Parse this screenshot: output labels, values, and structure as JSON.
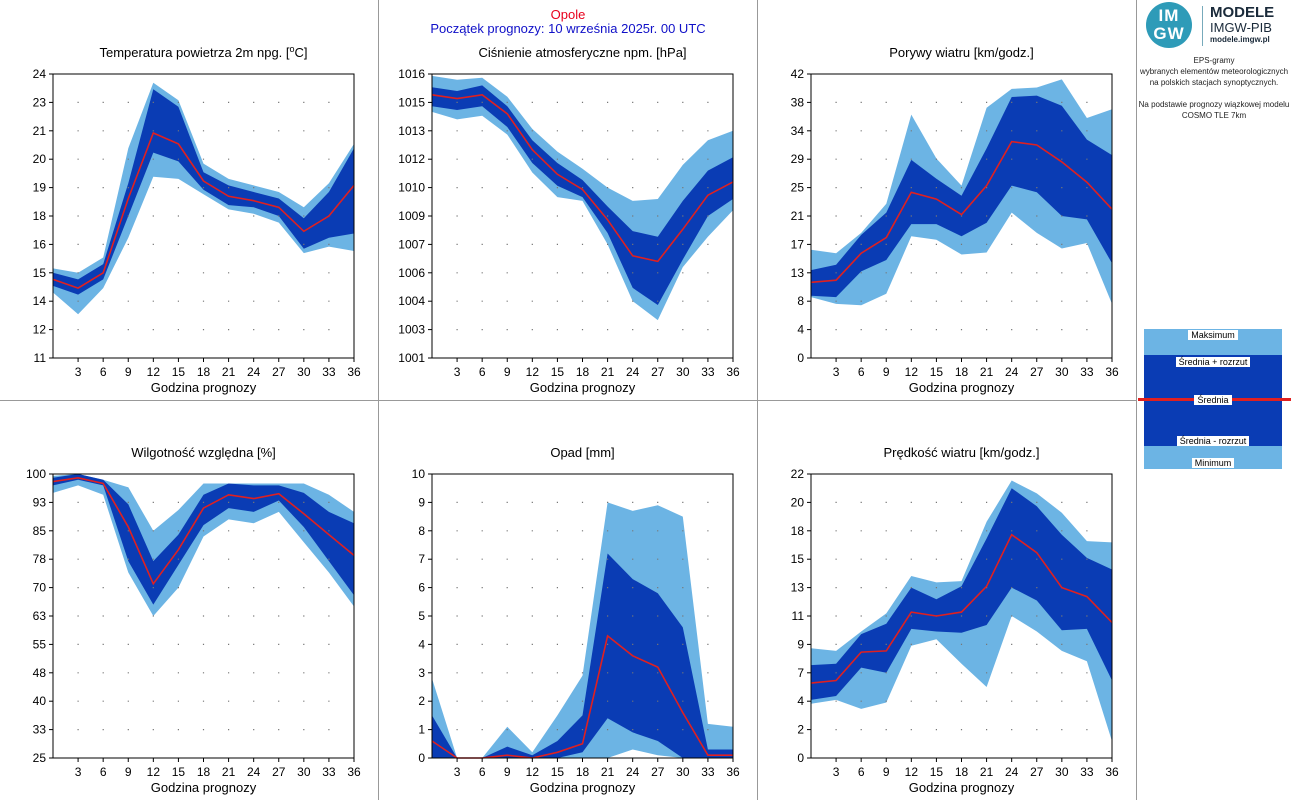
{
  "header": {
    "location": "Opole",
    "forecast_start": "Początek prognozy: 10 września 2025r. 00 UTC"
  },
  "logo": {
    "mark_top": "IM",
    "mark_bottom": "GW",
    "title": "MODELE",
    "subtitle": "IMGW-PIB",
    "url": "modele.imgw.pl"
  },
  "info": {
    "line1": "EPS-gramy",
    "line2": "wybranych elementów meteorologicznych",
    "line3": "na polskich stacjach  synoptycznych.",
    "line4": "Na podstawie prognozy wiązkowej modelu",
    "line5": "COSMO TLE 7km"
  },
  "legend": {
    "max": "Maksimum",
    "mean_plus": "Średnia + rozrzut",
    "mean": "Średnia",
    "mean_minus": "Średnia - rozrzut",
    "min": "Minimum"
  },
  "colors": {
    "light_band": "#6cb4e4",
    "dark_band": "#0a3cb4",
    "mean_line": "#e02020",
    "location": "#e8001c",
    "forecast_start": "#1010c8"
  },
  "chart_data": [
    {
      "type": "area",
      "title": "Temperatura powietrza 2m npg. [°C]",
      "title_base": "Temperatura powietrza 2m npg. [",
      "title_sup": "o",
      "title_end": "C]",
      "xlabel": "Godzina prognozy",
      "x": [
        0,
        3,
        6,
        9,
        12,
        15,
        18,
        21,
        24,
        27,
        30,
        33,
        36
      ],
      "xticks": [
        3,
        6,
        9,
        12,
        15,
        18,
        21,
        24,
        27,
        30,
        33,
        36
      ],
      "xlim": [
        0,
        36
      ],
      "ylim": [
        11,
        24
      ],
      "ytick_values": [
        11,
        12.3,
        13.6,
        14.9,
        16.2,
        17.5,
        18.8,
        20.1,
        21.4,
        22.7,
        24
      ],
      "ytick_labels": [
        "11",
        "12",
        "14",
        "15",
        "16",
        "18",
        "19",
        "20",
        "21",
        "23",
        "24"
      ],
      "series": {
        "min": [
          14.0,
          13.0,
          14.2,
          16.5,
          19.3,
          19.2,
          18.5,
          17.8,
          17.6,
          17.2,
          15.8,
          16.1,
          15.9
        ],
        "mean_minus": [
          14.3,
          13.9,
          14.6,
          17.5,
          20.4,
          20.0,
          18.7,
          18.0,
          17.9,
          17.5,
          16.0,
          16.5,
          16.7
        ],
        "mean": [
          14.6,
          14.2,
          14.9,
          18.3,
          21.3,
          20.8,
          19.1,
          18.4,
          18.2,
          17.9,
          16.8,
          17.5,
          18.9
        ],
        "mean_plus": [
          14.9,
          14.6,
          15.3,
          19.0,
          23.3,
          22.5,
          19.5,
          18.9,
          18.6,
          18.3,
          17.4,
          18.6,
          20.6
        ],
        "max": [
          15.1,
          14.9,
          15.6,
          20.6,
          23.6,
          22.8,
          19.9,
          19.2,
          18.9,
          18.6,
          17.9,
          19.0,
          20.8
        ]
      }
    },
    {
      "type": "area",
      "title": "Ciśnienie atmosferyczne npm. [hPa]",
      "xlabel": "Godzina prognozy",
      "x": [
        0,
        3,
        6,
        9,
        12,
        15,
        18,
        21,
        24,
        27,
        30,
        33,
        36
      ],
      "xticks": [
        3,
        6,
        9,
        12,
        15,
        18,
        21,
        24,
        27,
        30,
        33,
        36
      ],
      "xlim": [
        0,
        36
      ],
      "ylim": [
        1001,
        1016
      ],
      "ytick_values": [
        1001,
        1002.5,
        1004,
        1005.5,
        1007,
        1008.5,
        1010,
        1011.5,
        1013,
        1014.5,
        1016
      ],
      "ytick_labels": [
        "1001",
        "1003",
        "1004",
        "1006",
        "1007",
        "1009",
        "1010",
        "1012",
        "1013",
        "1015",
        "1016"
      ],
      "series": {
        "min": [
          1014.0,
          1013.6,
          1013.8,
          1012.8,
          1010.8,
          1009.5,
          1009.3,
          1007.0,
          1004.0,
          1003.0,
          1005.8,
          1007.4,
          1008.8
        ],
        "mean_minus": [
          1014.3,
          1014.1,
          1014.3,
          1013.2,
          1011.3,
          1010.1,
          1009.5,
          1007.6,
          1004.7,
          1003.8,
          1006.2,
          1008.5,
          1009.4
        ],
        "mean": [
          1014.9,
          1014.7,
          1014.9,
          1013.9,
          1012.0,
          1010.7,
          1009.9,
          1008.3,
          1006.4,
          1006.1,
          1007.8,
          1009.6,
          1010.3
        ],
        "mean_plus": [
          1015.3,
          1015.1,
          1015.4,
          1014.3,
          1012.5,
          1011.3,
          1010.4,
          1009.0,
          1007.7,
          1007.4,
          1009.3,
          1010.9,
          1011.6
        ],
        "max": [
          1015.9,
          1015.7,
          1015.8,
          1014.8,
          1013.1,
          1011.9,
          1011.0,
          1010.0,
          1009.3,
          1009.4,
          1011.2,
          1012.5,
          1013.0
        ]
      }
    },
    {
      "type": "area",
      "title": "Porywy wiatru [km/godz.]",
      "xlabel": "Godzina prognozy",
      "x": [
        0,
        3,
        6,
        9,
        12,
        15,
        18,
        21,
        24,
        27,
        30,
        33,
        36
      ],
      "xticks": [
        3,
        6,
        9,
        12,
        15,
        18,
        21,
        24,
        27,
        30,
        33,
        36
      ],
      "xlim": [
        0,
        36
      ],
      "ylim": [
        0,
        42
      ],
      "ytick_values": [
        0,
        4.2,
        8.4,
        12.6,
        16.8,
        21,
        25.2,
        29.4,
        33.6,
        37.8,
        42
      ],
      "ytick_labels": [
        "0",
        "4",
        "8",
        "13",
        "17",
        "21",
        "25",
        "29",
        "34",
        "38",
        "42"
      ],
      "series": {
        "min": [
          9.0,
          8.0,
          7.8,
          9.5,
          18.0,
          17.5,
          15.3,
          15.6,
          21.5,
          18.5,
          16.2,
          17.0,
          8.0
        ],
        "mean_minus": [
          9.2,
          9.0,
          12.8,
          14.5,
          19.8,
          19.8,
          18.0,
          20.0,
          25.5,
          24.5,
          21.0,
          20.5,
          14.0
        ],
        "mean": [
          11.2,
          11.5,
          15.5,
          17.8,
          24.5,
          23.5,
          21.2,
          25.5,
          32.0,
          31.5,
          29.0,
          26.0,
          22.0
        ],
        "mean_plus": [
          13.0,
          13.8,
          18.2,
          21.5,
          29.3,
          26.5,
          24.0,
          31.0,
          38.6,
          38.8,
          37.3,
          32.3,
          30.0
        ],
        "max": [
          16.0,
          15.5,
          18.5,
          22.8,
          36.0,
          29.5,
          25.5,
          37.0,
          39.8,
          40.0,
          41.2,
          35.5,
          36.8
        ]
      }
    },
    {
      "type": "area",
      "title": "Wilgotność względna [%]",
      "xlabel": "Godzina prognozy",
      "x": [
        0,
        3,
        6,
        9,
        12,
        15,
        18,
        21,
        24,
        27,
        30,
        33,
        36
      ],
      "xticks": [
        3,
        6,
        9,
        12,
        15,
        18,
        21,
        24,
        27,
        30,
        33,
        36
      ],
      "xlim": [
        0,
        36
      ],
      "ylim": [
        25,
        100
      ],
      "ytick_values": [
        25,
        32.5,
        40,
        47.5,
        55,
        62.5,
        70,
        77.5,
        85,
        92.5,
        100
      ],
      "ytick_labels": [
        "25",
        "33",
        "40",
        "48",
        "55",
        "63",
        "70",
        "78",
        "85",
        "93",
        "100"
      ],
      "series": {
        "min": [
          95.0,
          97.0,
          94.5,
          74.0,
          62.5,
          70.0,
          83.5,
          88.0,
          87.0,
          90.0,
          82.0,
          74.0,
          65.0
        ],
        "mean_minus": [
          97.0,
          98.5,
          97.0,
          77.0,
          65.5,
          76.0,
          86.5,
          91.0,
          90.0,
          93.0,
          86.0,
          77.0,
          68.0
        ],
        "mean": [
          98.0,
          99.0,
          97.5,
          86.0,
          71.0,
          80.0,
          91.0,
          94.5,
          93.5,
          94.8,
          89.5,
          84.0,
          78.5
        ],
        "mean_plus": [
          99.0,
          100.0,
          98.5,
          92.0,
          77.0,
          84.0,
          94.5,
          97.5,
          97.0,
          97.0,
          95.0,
          90.0,
          87.0
        ],
        "max": [
          99.5,
          100.0,
          98.5,
          96.5,
          85.0,
          90.5,
          97.5,
          97.5,
          97.5,
          97.5,
          97.5,
          94.5,
          90.0
        ]
      }
    },
    {
      "type": "area",
      "title": "Opad [mm]",
      "xlabel": "Godzina prognozy",
      "x": [
        0,
        3,
        6,
        9,
        12,
        15,
        18,
        21,
        24,
        27,
        30,
        33,
        36
      ],
      "xticks": [
        3,
        6,
        9,
        12,
        15,
        18,
        21,
        24,
        27,
        30,
        33,
        36
      ],
      "xlim": [
        0,
        36
      ],
      "ylim": [
        0,
        10
      ],
      "ytick_values": [
        0,
        1,
        2,
        3,
        4,
        5,
        6,
        7,
        8,
        9,
        10
      ],
      "ytick_labels": [
        "0",
        "1",
        "2",
        "3",
        "4",
        "5",
        "6",
        "7",
        "8",
        "9",
        "10"
      ],
      "series": {
        "min": [
          0,
          0,
          0,
          0,
          0,
          0,
          0,
          0,
          0.3,
          0.1,
          0,
          0,
          0
        ],
        "mean_minus": [
          0,
          0,
          0,
          0,
          0,
          0,
          0.2,
          1.4,
          0.9,
          0.6,
          0,
          0,
          0
        ],
        "mean": [
          0.6,
          0,
          0,
          0.1,
          0,
          0.2,
          0.5,
          4.3,
          3.6,
          3.2,
          1.6,
          0.1,
          0.1
        ],
        "mean_plus": [
          1.5,
          0,
          0,
          0.4,
          0.1,
          0.6,
          1.5,
          7.2,
          6.3,
          5.8,
          4.6,
          0.3,
          0.3
        ],
        "max": [
          2.8,
          0,
          0,
          1.1,
          0.2,
          1.5,
          2.9,
          9.0,
          8.7,
          8.9,
          8.5,
          1.2,
          1.1
        ]
      }
    },
    {
      "type": "area",
      "title": "Prędkość wiatru [km/godz.]",
      "xlabel": "Godzina prognozy",
      "x": [
        0,
        3,
        6,
        9,
        12,
        15,
        18,
        21,
        24,
        27,
        30,
        33,
        36
      ],
      "xticks": [
        3,
        6,
        9,
        12,
        15,
        18,
        21,
        24,
        27,
        30,
        33,
        36
      ],
      "xlim": [
        0,
        36
      ],
      "ylim": [
        0,
        22
      ],
      "ytick_values": [
        0,
        2.2,
        4.4,
        6.6,
        8.8,
        11,
        13.2,
        15.4,
        17.6,
        19.8,
        22
      ],
      "ytick_labels": [
        "0",
        "2",
        "4",
        "7",
        "9",
        "11",
        "13",
        "15",
        "18",
        "20",
        "22"
      ],
      "series": {
        "min": [
          4.2,
          4.5,
          3.8,
          4.3,
          8.7,
          9.2,
          7.3,
          5.5,
          11.0,
          9.8,
          8.3,
          7.5,
          1.3
        ],
        "mean_minus": [
          4.5,
          4.8,
          7.0,
          6.6,
          10.0,
          9.8,
          9.7,
          10.3,
          13.2,
          12.2,
          9.9,
          10.0,
          6.0
        ],
        "mean": [
          5.8,
          6.0,
          8.2,
          8.3,
          11.3,
          11.0,
          11.3,
          13.3,
          17.3,
          15.9,
          13.2,
          12.5,
          10.5
        ],
        "mean_plus": [
          7.2,
          7.3,
          9.6,
          10.4,
          13.2,
          12.3,
          13.3,
          17.0,
          20.9,
          19.5,
          17.3,
          15.5,
          14.6
        ],
        "max": [
          8.5,
          8.3,
          9.8,
          11.2,
          14.1,
          13.6,
          13.7,
          18.3,
          21.5,
          20.5,
          19.0,
          16.8,
          16.7
        ]
      }
    }
  ]
}
